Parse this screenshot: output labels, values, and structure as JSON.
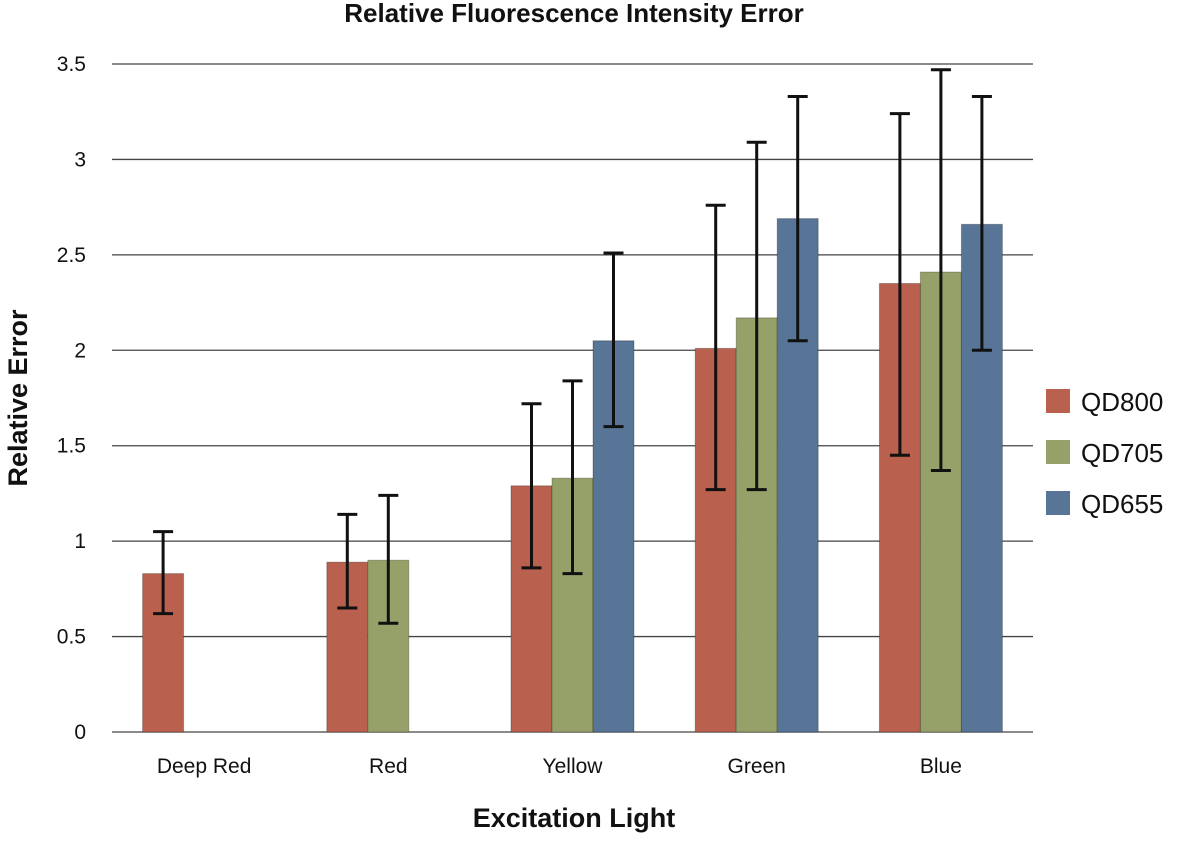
{
  "chart_data": {
    "type": "bar",
    "title": "Relative Fluorescence Intensity Error",
    "xlabel": "Excitation Light",
    "ylabel": "Relative Error",
    "categories": [
      "Deep Red",
      "Red",
      "Yellow",
      "Green",
      "Blue"
    ],
    "ylim": [
      0,
      3.5
    ],
    "yticks": [
      0,
      0.5,
      1,
      1.5,
      2,
      2.5,
      3,
      3.5
    ],
    "ytick_labels": [
      "0",
      "0.5",
      "1",
      "1.5",
      "2",
      "2.5",
      "3",
      "3.5"
    ],
    "grid": true,
    "legend_position": "right",
    "series": [
      {
        "name": "QD800",
        "color": "#B9614E",
        "values": [
          0.83,
          0.89,
          1.29,
          2.01,
          2.35
        ],
        "error_low": [
          0.62,
          0.65,
          0.86,
          1.27,
          1.45
        ],
        "error_high": [
          1.05,
          1.14,
          1.72,
          2.76,
          3.24
        ]
      },
      {
        "name": "QD705",
        "color": "#96A16A",
        "values": [
          null,
          0.9,
          1.33,
          2.17,
          2.41
        ],
        "error_low": [
          null,
          0.57,
          0.83,
          1.27,
          1.37
        ],
        "error_high": [
          null,
          1.24,
          1.84,
          3.09,
          3.47
        ]
      },
      {
        "name": "QD655",
        "color": "#587497",
        "values": [
          null,
          null,
          2.05,
          2.69,
          2.66
        ],
        "error_low": [
          null,
          null,
          1.6,
          2.05,
          2.0
        ],
        "error_high": [
          null,
          null,
          2.51,
          3.33,
          3.33
        ]
      }
    ]
  }
}
